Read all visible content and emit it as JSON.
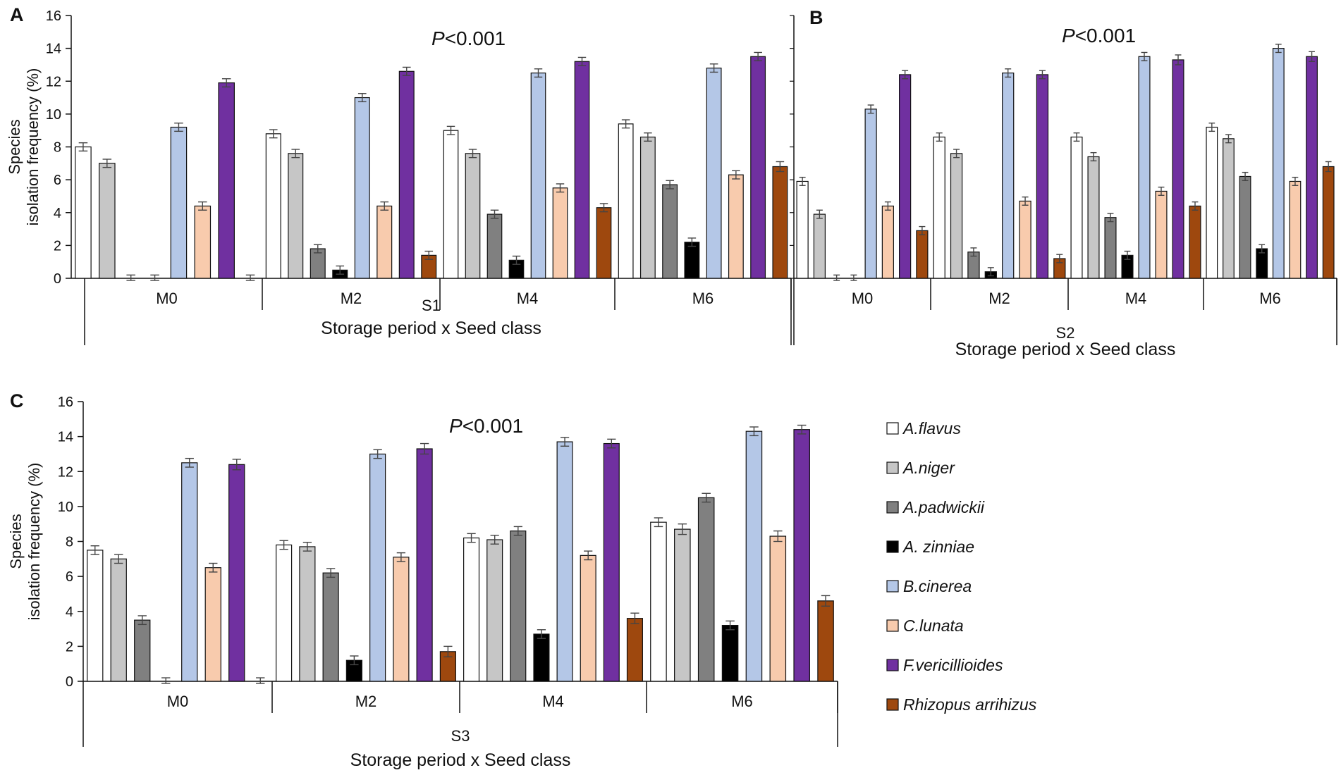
{
  "chart_data": [
    {
      "panel": "A",
      "type": "bar",
      "annotation_prefix": "P",
      "annotation_suffix": "<0.001",
      "season": "S1",
      "xlabel": "Storage period  x  Seed class",
      "ylabel_line1": "Species",
      "ylabel_line2": "isolation frequency  (%)",
      "ylim": [
        0,
        16
      ],
      "yticks": [
        "0",
        "2",
        "4",
        "6",
        "8",
        "10",
        "12",
        "14",
        "16"
      ],
      "categories": [
        "M0",
        "M2",
        "M4",
        "M6"
      ],
      "series": [
        {
          "name": "A.flavus",
          "values": [
            8.0,
            8.8,
            9.0,
            9.4
          ],
          "errors": [
            0.25,
            0.25,
            0.25,
            0.25
          ]
        },
        {
          "name": "A.niger",
          "values": [
            7.0,
            7.6,
            7.6,
            8.6
          ],
          "errors": [
            0.25,
            0.25,
            0.25,
            0.25
          ]
        },
        {
          "name": "A.padwickii",
          "values": [
            0.0,
            1.8,
            3.9,
            5.7
          ],
          "errors": [
            0.2,
            0.25,
            0.25,
            0.25
          ]
        },
        {
          "name": "A. zinniae",
          "values": [
            0.0,
            0.5,
            1.1,
            2.2
          ],
          "errors": [
            0.2,
            0.25,
            0.25,
            0.25
          ]
        },
        {
          "name": "B.cinerea",
          "values": [
            9.2,
            11.0,
            12.5,
            12.8
          ],
          "errors": [
            0.25,
            0.25,
            0.25,
            0.25
          ]
        },
        {
          "name": "C.lunata",
          "values": [
            4.4,
            4.4,
            5.5,
            6.3
          ],
          "errors": [
            0.25,
            0.25,
            0.25,
            0.25
          ]
        },
        {
          "name": "F.vericillioides",
          "values": [
            11.9,
            12.6,
            13.2,
            13.5
          ],
          "errors": [
            0.25,
            0.25,
            0.25,
            0.25
          ]
        },
        {
          "name": "Rhizopus arrihizus",
          "values": [
            0.0,
            1.4,
            4.3,
            6.8
          ],
          "errors": [
            0.2,
            0.25,
            0.25,
            0.3
          ]
        }
      ]
    },
    {
      "panel": "B",
      "type": "bar",
      "annotation_prefix": "P",
      "annotation_suffix": "<0.001",
      "season": "S2",
      "xlabel": "Storage  period  x  Seed class",
      "ylim": [
        0,
        16
      ],
      "categories": [
        "M0",
        "M2",
        "M4",
        "M6"
      ],
      "series": [
        {
          "name": "A.flavus",
          "values": [
            5.9,
            8.6,
            8.6,
            9.2
          ],
          "errors": [
            0.25,
            0.25,
            0.25,
            0.25
          ]
        },
        {
          "name": "A.niger",
          "values": [
            3.9,
            7.6,
            7.4,
            8.5
          ],
          "errors": [
            0.25,
            0.25,
            0.25,
            0.25
          ]
        },
        {
          "name": "A.padwickii",
          "values": [
            0.0,
            1.6,
            3.7,
            6.2
          ],
          "errors": [
            0.2,
            0.25,
            0.25,
            0.25
          ]
        },
        {
          "name": "A. zinniae",
          "values": [
            0.0,
            0.4,
            1.4,
            1.8
          ],
          "errors": [
            0.2,
            0.25,
            0.25,
            0.25
          ]
        },
        {
          "name": "B.cinerea",
          "values": [
            10.3,
            12.5,
            13.5,
            14.0
          ],
          "errors": [
            0.25,
            0.25,
            0.25,
            0.25
          ]
        },
        {
          "name": "C.lunata",
          "values": [
            4.4,
            4.7,
            5.3,
            5.9
          ],
          "errors": [
            0.25,
            0.25,
            0.25,
            0.25
          ]
        },
        {
          "name": "F.vericillioides",
          "values": [
            12.4,
            12.4,
            13.3,
            13.5
          ],
          "errors": [
            0.25,
            0.25,
            0.3,
            0.3
          ]
        },
        {
          "name": "Rhizopus arrihizus",
          "values": [
            2.9,
            1.2,
            4.4,
            6.8
          ],
          "errors": [
            0.25,
            0.25,
            0.25,
            0.3
          ]
        }
      ]
    },
    {
      "panel": "C",
      "type": "bar",
      "annotation_prefix": "P",
      "annotation_suffix": "<0.001",
      "season": "S3",
      "xlabel": "Storage  period  x  Seed class",
      "ylabel_line1": "Species",
      "ylabel_line2": "isolation frequency  (%)",
      "ylim": [
        0,
        16
      ],
      "yticks": [
        "0",
        "2",
        "4",
        "6",
        "8",
        "10",
        "12",
        "14",
        "16"
      ],
      "categories": [
        "M0",
        "M2",
        "M4",
        "M6"
      ],
      "series": [
        {
          "name": "A.flavus",
          "values": [
            7.5,
            7.8,
            8.2,
            9.1
          ],
          "errors": [
            0.25,
            0.25,
            0.25,
            0.25
          ]
        },
        {
          "name": "A.niger",
          "values": [
            7.0,
            7.7,
            8.1,
            8.7
          ],
          "errors": [
            0.25,
            0.25,
            0.25,
            0.3
          ]
        },
        {
          "name": "A.padwickii",
          "values": [
            3.5,
            6.2,
            8.6,
            10.5
          ],
          "errors": [
            0.25,
            0.25,
            0.25,
            0.25
          ]
        },
        {
          "name": "A. zinniae",
          "values": [
            0.0,
            1.2,
            2.7,
            3.2
          ],
          "errors": [
            0.2,
            0.25,
            0.25,
            0.25
          ]
        },
        {
          "name": "B.cinerea",
          "values": [
            12.5,
            13.0,
            13.7,
            14.3
          ],
          "errors": [
            0.25,
            0.25,
            0.25,
            0.25
          ]
        },
        {
          "name": "C.lunata",
          "values": [
            6.5,
            7.1,
            7.2,
            8.3
          ],
          "errors": [
            0.25,
            0.25,
            0.25,
            0.3
          ]
        },
        {
          "name": "F.vericillioides",
          "values": [
            12.4,
            13.3,
            13.6,
            14.4
          ],
          "errors": [
            0.3,
            0.3,
            0.25,
            0.25
          ]
        },
        {
          "name": "Rhizopus arrihizus",
          "values": [
            0.0,
            1.7,
            3.6,
            4.6
          ],
          "errors": [
            0.2,
            0.3,
            0.3,
            0.3
          ]
        }
      ]
    }
  ],
  "legend": {
    "items": [
      {
        "name": "A.flavus",
        "color": "#ffffff"
      },
      {
        "name": "A.niger",
        "color": "#c6c6c6"
      },
      {
        "name": "A.padwickii",
        "color": "#808080"
      },
      {
        "name": "A. zinniae",
        "color": "#000000"
      },
      {
        "name": "B.cinerea",
        "color": "#b4c7e7"
      },
      {
        "name": "C.lunata",
        "color": "#f8cbad"
      },
      {
        "name": "F.vericillioides",
        "color": "#7030a0"
      },
      {
        "name": "Rhizopus arrihizus",
        "color": "#9e480e"
      }
    ]
  },
  "colors": {
    "axis": "#111111",
    "bar_outline": "#111111",
    "error_bar": "#444444"
  }
}
